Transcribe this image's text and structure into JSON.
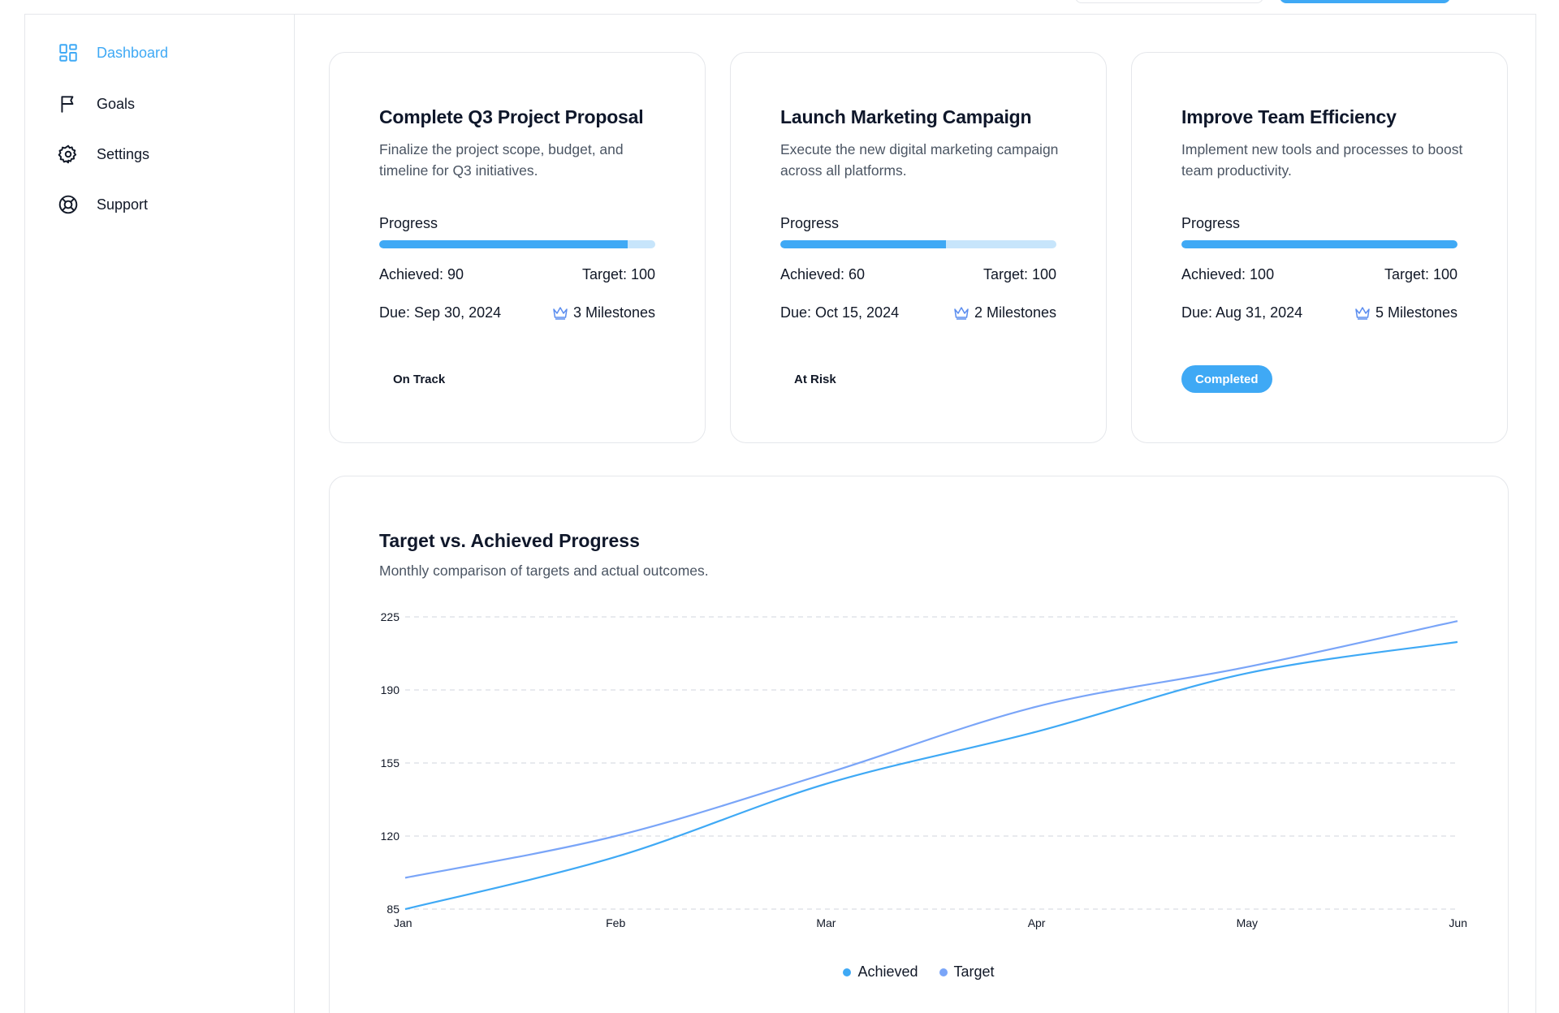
{
  "nav": {
    "items": [
      {
        "label": "Dashboard",
        "icon": "dashboard-icon",
        "active": true
      },
      {
        "label": "Goals",
        "icon": "flag-icon",
        "active": false
      },
      {
        "label": "Settings",
        "icon": "gear-icon",
        "active": false
      },
      {
        "label": "Support",
        "icon": "lifebuoy-icon",
        "active": false
      }
    ]
  },
  "goals": [
    {
      "title": "Complete Q3 Project Proposal",
      "description": "Finalize the project scope, budget, and timeline for Q3 initiatives.",
      "progress_label": "Progress",
      "progress": 0.9,
      "achieved": "Achieved: 90",
      "target": "Target: 100",
      "due": "Due: Sep 30, 2024",
      "milestones": "3 Milestones",
      "status": "On Track",
      "status_style": "plain"
    },
    {
      "title": "Launch Marketing Campaign",
      "description": "Execute the new digital marketing campaign across all platforms.",
      "progress_label": "Progress",
      "progress": 0.6,
      "achieved": "Achieved: 60",
      "target": "Target: 100",
      "due": "Due: Oct 15, 2024",
      "milestones": "2 Milestones",
      "status": "At Risk",
      "status_style": "plain"
    },
    {
      "title": "Improve Team Efficiency",
      "description": "Implement new tools and processes to boost team productivity.",
      "progress_label": "Progress",
      "progress": 1.0,
      "achieved": "Achieved: 100",
      "target": "Target: 100",
      "due": "Due: Aug 31, 2024",
      "milestones": "5 Milestones",
      "status": "Completed",
      "status_style": "completed"
    }
  ],
  "colors": {
    "accent": "#3fa9f5",
    "achieved": "#3fa9f5",
    "target": "#7aa5f8",
    "progress_track": "#c7e5fb"
  },
  "chart": {
    "title": "Target vs. Achieved Progress",
    "subtitle": "Monthly comparison of targets and actual outcomes."
  },
  "chart_data": {
    "type": "line",
    "x": [
      "Jan",
      "Feb",
      "Mar",
      "Apr",
      "May",
      "Jun"
    ],
    "series": [
      {
        "name": "Achieved",
        "values": [
          85,
          110,
          145,
          170,
          198,
          213
        ]
      },
      {
        "name": "Target",
        "values": [
          100,
          120,
          150,
          182,
          201,
          223
        ]
      }
    ],
    "yticks": [
      85,
      120,
      155,
      190,
      225
    ],
    "ylim": [
      85,
      225
    ],
    "grid": "horizontal dashed",
    "legend_position": "bottom-center",
    "title": "Target vs. Achieved Progress",
    "subtitle": "Monthly comparison of targets and actual outcomes."
  }
}
